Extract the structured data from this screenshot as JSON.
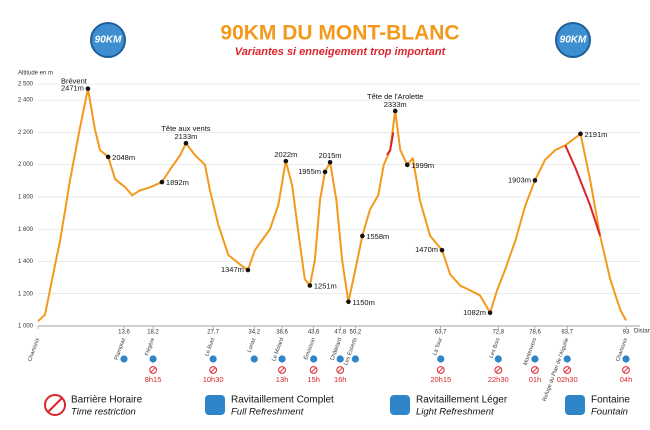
{
  "logo_text": "90KM",
  "chart_data": {
    "type": "line",
    "title": "90KM DU MONT-BLANC",
    "subtitle": "Variantes si enneigement trop important",
    "y_label": "Altitude en m",
    "x_label": "Distance en km",
    "color": "#f39a1e",
    "grid": true,
    "xlim": [
      0,
      93
    ],
    "ylim": [
      1000,
      2500
    ],
    "yticks": [
      {
        "value": 1000,
        "label": "1 000"
      },
      {
        "value": 1200,
        "label": "1 200"
      },
      {
        "value": 1400,
        "label": "1 400"
      },
      {
        "value": 1600,
        "label": "1 600"
      },
      {
        "value": 1800,
        "label": "1 800"
      },
      {
        "value": 2000,
        "label": "2 000"
      },
      {
        "value": 2200,
        "label": "2 200"
      },
      {
        "value": 2400,
        "label": "2 400"
      },
      {
        "value": 2500,
        "label": "2 500"
      }
    ],
    "profile": {
      "x": [
        0,
        1.1,
        2.7,
        3.5,
        5.1,
        6.6,
        7.9,
        9.0,
        9.8,
        11.1,
        12.2,
        13.8,
        14.9,
        16.1,
        17.7,
        19.6,
        20.9,
        22.5,
        23.4,
        24.8,
        26.4,
        27.2,
        28.5,
        30.1,
        32.0,
        33.2,
        34.3,
        35.4,
        36.7,
        38.0,
        39.2,
        40.2,
        41.1,
        42.2,
        43.0,
        43.8,
        44.6,
        45.4,
        46.2,
        47.2,
        48.1,
        49.1,
        50.2,
        51.3,
        52.5,
        53.8,
        54.7,
        55.7,
        56.5,
        57.3,
        58.4,
        59.3,
        60.4,
        62.0,
        63.9,
        65.2,
        66.8,
        68.4,
        69.9,
        71.5,
        72.6,
        73.9,
        75.5,
        77.1,
        78.6,
        80.2,
        81.8,
        83.4,
        85.8,
        87.3,
        88.9,
        90.5,
        92.1,
        93.0
      ],
      "values": [
        1030,
        1070,
        1380,
        1530,
        1910,
        2220,
        2471,
        2220,
        2090,
        2048,
        1910,
        1860,
        1810,
        1840,
        1860,
        1892,
        1970,
        2060,
        2133,
        2060,
        2000,
        1840,
        1630,
        1440,
        1380,
        1347,
        1470,
        1530,
        1600,
        1750,
        2022,
        1870,
        1600,
        1290,
        1251,
        1410,
        1780,
        1955,
        2015,
        1780,
        1410,
        1150,
        1350,
        1558,
        1720,
        1810,
        2000,
        2090,
        2333,
        2090,
        1999,
        2040,
        1780,
        1560,
        1470,
        1320,
        1250,
        1220,
        1190,
        1082,
        1220,
        1350,
        1530,
        1750,
        1903,
        2030,
        2090,
        2120,
        2191,
        1910,
        1560,
        1290,
        1100,
        1035
      ]
    },
    "variants": [
      {
        "color": "#d9262c",
        "x": [
          55.2,
          55.7,
          56.2
        ],
        "values": [
          2060,
          2090,
          2200
        ]
      },
      {
        "color": "#d9262c",
        "x": [
          83.4,
          85.0,
          87.3,
          88.9
        ],
        "values": [
          2120,
          1980,
          1750,
          1560
        ]
      }
    ],
    "annotations": [
      {
        "name": "Brévent",
        "x": 7.9,
        "value": 2471,
        "label": "2471m"
      },
      {
        "x": 11.1,
        "value": 2048,
        "label": "2048m"
      },
      {
        "x": 19.6,
        "value": 1892,
        "label": "1892m"
      },
      {
        "name": "Tête aux vents",
        "x": 23.4,
        "value": 2133,
        "label": "2133m"
      },
      {
        "x": 33.2,
        "value": 1347,
        "label": "1347m"
      },
      {
        "x": 39.2,
        "value": 2022,
        "label": "2022m"
      },
      {
        "x": 43.0,
        "value": 1251,
        "label": "1251m"
      },
      {
        "x": 45.4,
        "value": 1955,
        "label": "1955m"
      },
      {
        "x": 46.2,
        "value": 2015,
        "label": "2015m"
      },
      {
        "x": 49.1,
        "value": 1150,
        "label": "1150m"
      },
      {
        "x": 51.3,
        "value": 1558,
        "label": "1558m"
      },
      {
        "name": "Tête de l'Arolette",
        "x": 56.5,
        "value": 2333,
        "label": "2333m"
      },
      {
        "x": 58.4,
        "value": 1999,
        "label": "1999m"
      },
      {
        "x": 63.9,
        "value": 1470,
        "label": "1470m"
      },
      {
        "x": 71.5,
        "value": 1082,
        "label": "1082m"
      },
      {
        "x": 78.6,
        "value": 1903,
        "label": "1903m"
      },
      {
        "x": 85.8,
        "value": 2191,
        "label": "2191m"
      }
    ],
    "checkpoints": [
      {
        "name": "Chamonix"
      },
      {
        "name": "Plampraz",
        "km": {
          "value": 13.6,
          "label": "13,6"
        }
      },
      {
        "name": "Flégère",
        "km": {
          "value": 18.2,
          "label": "18,2"
        },
        "time": "8h15"
      },
      {
        "name": "Le Buet",
        "km": {
          "value": 27.7,
          "label": "27,7"
        },
        "time": "10h30"
      },
      {
        "name": "Loriaz",
        "km": {
          "value": 34.2,
          "label": "34,2"
        }
      },
      {
        "name": "Le Molard",
        "km": {
          "value": 38.6,
          "label": "38,6"
        },
        "time": "13h"
      },
      {
        "name": "Émosson",
        "km": {
          "value": 43.6,
          "label": "43,6"
        },
        "time": "15h"
      },
      {
        "name": "Châtelard",
        "km": {
          "value": 47.8,
          "label": "47,8"
        },
        "time": "16h"
      },
      {
        "name": "Les Esserts",
        "km": {
          "value": 50.2,
          "label": "50,2"
        }
      },
      {
        "name": "La Tour",
        "km": {
          "value": 63.7,
          "label": "63,7"
        },
        "time": "20h15"
      },
      {
        "name": "Les Bois",
        "km": {
          "value": 72.8,
          "label": "72,8"
        },
        "time": "22h30"
      },
      {
        "name": "Montenvers",
        "km": {
          "value": 78.6,
          "label": "78,6"
        },
        "time": "01h"
      },
      {
        "name": "Refuge du Plan de l'Aiguille",
        "km": {
          "value": 83.7,
          "label": "83,7"
        },
        "time": "02h30"
      },
      {
        "name": "Chamonix",
        "km": 93,
        "time": "04h"
      }
    ],
    "legend": [
      {
        "fr": "Barrière Horaire",
        "en": "Time restriction"
      },
      {
        "fr": "Ravitaillement Complet",
        "en": "Full Refreshment"
      },
      {
        "fr": "Ravitaillement Léger",
        "en": "Light Refreshment"
      },
      {
        "fr": "Fontaine",
        "en": "Fountain"
      }
    ]
  }
}
